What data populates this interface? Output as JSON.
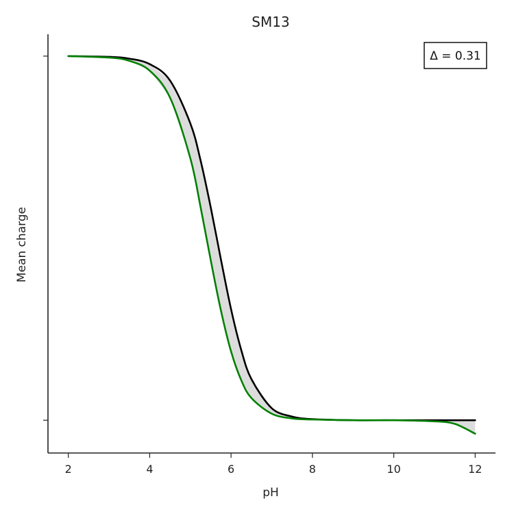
{
  "chart_data": {
    "type": "line",
    "title": "SM13",
    "xlabel": "pH",
    "ylabel": "Mean charge",
    "xlim": [
      1.5,
      12.5
    ],
    "ylim": [
      -0.09,
      1.06
    ],
    "x_ticks": [
      2,
      4,
      6,
      8,
      10,
      12
    ],
    "x_tick_labels": [
      "2",
      "4",
      "6",
      "8",
      "10",
      "12"
    ],
    "y_ticks": [
      0,
      1
    ],
    "y_tick_labels": [
      "",
      ""
    ],
    "grid": false,
    "annotation": {
      "text": "Δ = 0.31",
      "placement": "top-right"
    },
    "fill_between": {
      "color": "#dcdcdc"
    },
    "series": [
      {
        "color": "#000000",
        "x": [
          2,
          3,
          3.5,
          4,
          4.5,
          5,
          5.25,
          5.5,
          5.75,
          6,
          6.25,
          6.5,
          7,
          7.5,
          8,
          9,
          10,
          11,
          12
        ],
        "y": [
          1.0,
          0.998,
          0.993,
          0.978,
          0.933,
          0.815,
          0.714,
          0.585,
          0.442,
          0.305,
          0.193,
          0.113,
          0.033,
          0.01,
          0.003,
          0.0,
          0.0,
          0.0,
          0.0
        ]
      },
      {
        "color": "#008000",
        "x": [
          2,
          3,
          3.5,
          4,
          4.5,
          5,
          5.25,
          5.5,
          5.75,
          6,
          6.25,
          6.5,
          7,
          7.5,
          8,
          9,
          10,
          11,
          11.5,
          12
        ],
        "y": [
          1.0,
          0.996,
          0.987,
          0.96,
          0.886,
          0.719,
          0.586,
          0.44,
          0.302,
          0.189,
          0.11,
          0.061,
          0.018,
          0.005,
          0.002,
          0.0,
          0.0,
          -0.003,
          -0.01,
          -0.037
        ]
      }
    ]
  }
}
